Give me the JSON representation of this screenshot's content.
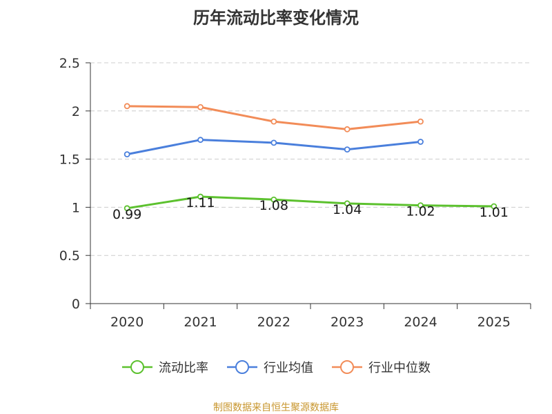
{
  "chart_data": {
    "type": "line",
    "title": "历年流动比率变化情况",
    "categories": [
      "2020",
      "2021",
      "2022",
      "2023",
      "2024",
      "2025"
    ],
    "ylim": [
      0,
      2.5
    ],
    "yticks": [
      "0",
      "0.5",
      "1",
      "1.5",
      "2",
      "2.5"
    ],
    "grid": true,
    "legend_position": "bottom",
    "series": [
      {
        "name": "流动比率",
        "color": "#5cc12e",
        "values": [
          0.99,
          1.11,
          1.08,
          1.04,
          1.02,
          1.01
        ],
        "labels": [
          "0.99",
          "1.11",
          "1.08",
          "1.04",
          "1.02",
          "1.01"
        ]
      },
      {
        "name": "行业均值",
        "color": "#4a7fdc",
        "values": [
          1.55,
          1.7,
          1.67,
          1.6,
          1.68,
          null
        ]
      },
      {
        "name": "行业中位数",
        "color": "#f28c58",
        "values": [
          2.05,
          2.04,
          1.89,
          1.81,
          1.89,
          null
        ]
      }
    ]
  },
  "source_text": "制图数据来自恒生聚源数据库"
}
